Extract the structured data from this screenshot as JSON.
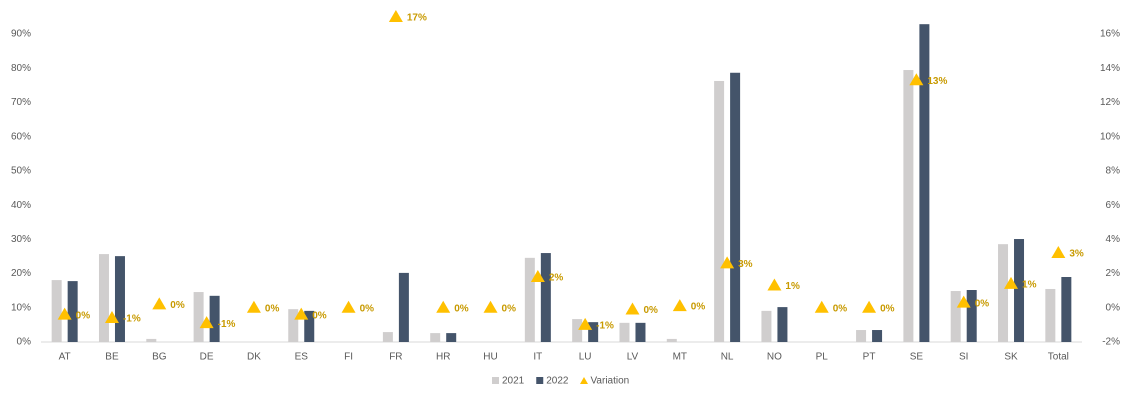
{
  "chart_data": {
    "type": "bar",
    "categories": [
      "AT",
      "BE",
      "BG",
      "DE",
      "DK",
      "ES",
      "FI",
      "FR",
      "HR",
      "HU",
      "IT",
      "LU",
      "LV",
      "MT",
      "NL",
      "NO",
      "PL",
      "PT",
      "SE",
      "SI",
      "SK",
      "Total"
    ],
    "series": [
      {
        "name": "2021",
        "type": "bar",
        "color": "#d0cece",
        "values": [
          18.1,
          25.7,
          0.9,
          14.6,
          0,
          9.6,
          0,
          2.9,
          2.6,
          0,
          24.6,
          6.7,
          5.6,
          0.9,
          76.3,
          9.1,
          0,
          3.5,
          79.5,
          14.9,
          28.6,
          15.5
        ]
      },
      {
        "name": "2022",
        "type": "bar",
        "color": "#44546a",
        "values": [
          17.8,
          25.1,
          0,
          13.5,
          0,
          9.1,
          0,
          20.2,
          2.6,
          0,
          26.0,
          5.8,
          5.6,
          0,
          78.7,
          10.2,
          0,
          3.5,
          92.9,
          15.2,
          30.1,
          19.0
        ]
      },
      {
        "name": "Variation",
        "type": "scatter",
        "axis": "y2",
        "color": "#ffc000",
        "label_color": "#c89a00",
        "values": [
          -0.4,
          -0.6,
          0.2,
          -0.9,
          0,
          -0.4,
          0,
          17,
          0,
          0,
          1.8,
          -1.0,
          -0.1,
          0.1,
          2.6,
          1.3,
          0,
          0,
          13.3,
          0.3,
          1.4,
          3.2
        ],
        "value_labels": [
          "0%",
          "-1%",
          "0%",
          "-1%",
          "0%",
          "0%",
          "0%",
          "17%",
          "0%",
          "0%",
          "2%",
          "-1%",
          "0%",
          "0%",
          "3%",
          "1%",
          "0%",
          "0%",
          "13%",
          "0%",
          "1%",
          "3%"
        ]
      }
    ],
    "ylim": [
      0,
      95
    ],
    "yticks": [
      {
        "value": 0,
        "label": "0%"
      },
      {
        "value": 10,
        "label": "10%"
      },
      {
        "value": 20,
        "label": "20%"
      },
      {
        "value": 30,
        "label": "30%"
      },
      {
        "value": 40,
        "label": "40%"
      },
      {
        "value": 50,
        "label": "50%"
      },
      {
        "value": 60,
        "label": "60%"
      },
      {
        "value": 70,
        "label": "70%"
      },
      {
        "value": 80,
        "label": "80%"
      },
      {
        "value": 90,
        "label": "90%"
      }
    ],
    "y2lim": [
      -2,
      17
    ],
    "y2ticks": [
      {
        "value": -2,
        "label": "-2%"
      },
      {
        "value": 0,
        "label": "0%"
      },
      {
        "value": 2,
        "label": "2%"
      },
      {
        "value": 4,
        "label": "4%"
      },
      {
        "value": 6,
        "label": "6%"
      },
      {
        "value": 8,
        "label": "8%"
      },
      {
        "value": 10,
        "label": "10%"
      },
      {
        "value": 12,
        "label": "12%"
      },
      {
        "value": 14,
        "label": "14%"
      },
      {
        "value": 16,
        "label": "16%"
      }
    ],
    "grid": false,
    "legend": "bottom"
  }
}
